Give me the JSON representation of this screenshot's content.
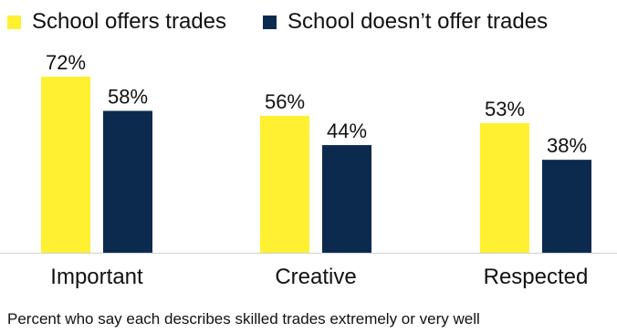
{
  "chart_data": {
    "type": "bar",
    "categories": [
      "Important",
      "Creative",
      "Respected"
    ],
    "series": [
      {
        "name": "School offers trades",
        "values": [
          72,
          56,
          53
        ],
        "color": "#FFF132"
      },
      {
        "name": "School doesn’t offer trades",
        "values": [
          58,
          44,
          38
        ],
        "color": "#0B2A4E"
      }
    ],
    "value_suffix": "%",
    "ylim": [
      0,
      72
    ],
    "grid": false,
    "legend_position": "top",
    "note": "Percent who say each describes skilled trades extremely or very well"
  }
}
